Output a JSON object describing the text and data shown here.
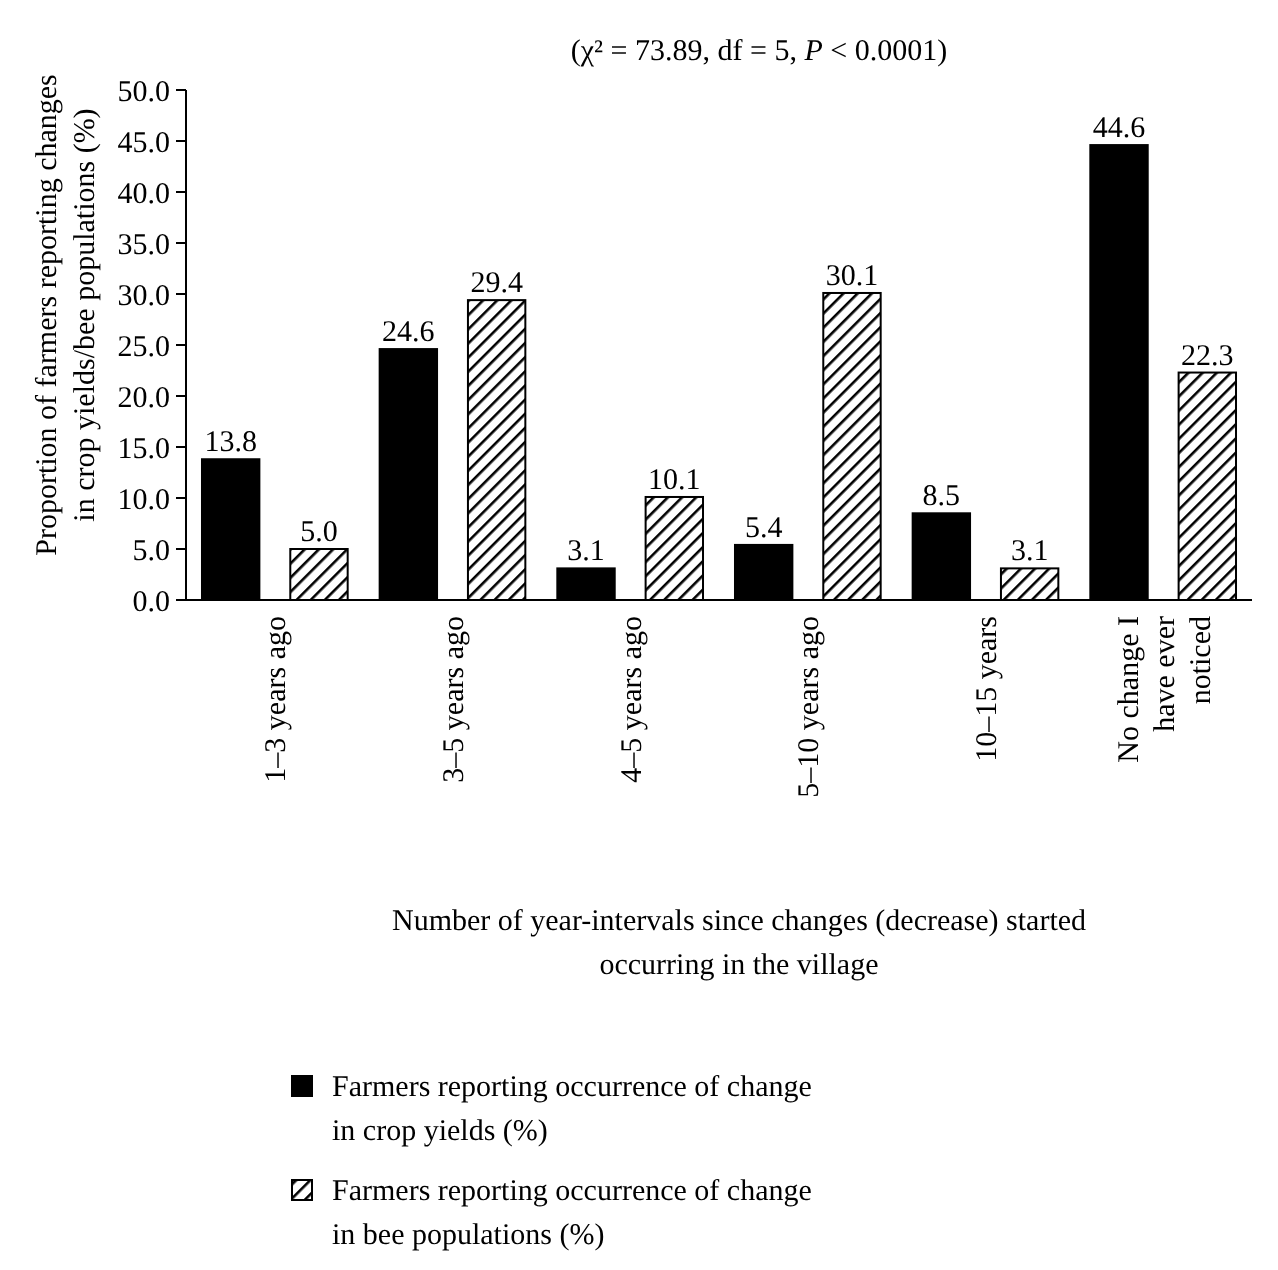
{
  "chart_data": {
    "type": "bar",
    "title": "(χ² = 73.89, df = 5, P < 0.0001)",
    "xlabel": "Number of year-intervals since changes (decrease) started occurring in the village",
    "ylabel": "Proportion of farmers reporting changes in crop yields/bee populations (%)",
    "categories": [
      "1–3 years ago",
      "3–5 years ago",
      "4–5 years ago",
      "5–10 years ago",
      "10–15 years",
      "No change I have ever noticed"
    ],
    "series": [
      {
        "name": "Farmers reporting occurrence of change in crop yields (%)",
        "color": "#000000",
        "values": [
          13.8,
          24.6,
          3.1,
          5.4,
          8.5,
          44.6
        ],
        "value_labels": [
          "13.8",
          "24.6",
          "3.1",
          "5.4",
          "8.5",
          "44.6"
        ]
      },
      {
        "name": "Farmers reporting occurrence of change in bee populations (%)",
        "color": "#000000",
        "values": [
          5.0,
          29.4,
          10.1,
          30.1,
          3.1,
          22.3
        ],
        "value_labels": [
          "5.0",
          "29.4",
          "10.1",
          "30.1",
          "3.1",
          "22.3"
        ]
      }
    ],
    "ylim": [
      0,
      50
    ],
    "yticks": [
      {
        "value": 0,
        "label": "0.0"
      },
      {
        "value": 5,
        "label": "5.0"
      },
      {
        "value": 10,
        "label": "10.0"
      },
      {
        "value": 15,
        "label": "15.0"
      },
      {
        "value": 20,
        "label": "20.0"
      },
      {
        "value": 25,
        "label": "25.0"
      },
      {
        "value": 30,
        "label": "30.0"
      },
      {
        "value": 35,
        "label": "35.0"
      },
      {
        "value": 40,
        "label": "40.0"
      },
      {
        "value": 45,
        "label": "45.0"
      },
      {
        "value": 50,
        "label": "50.0"
      }
    ],
    "legend": "bottom"
  }
}
